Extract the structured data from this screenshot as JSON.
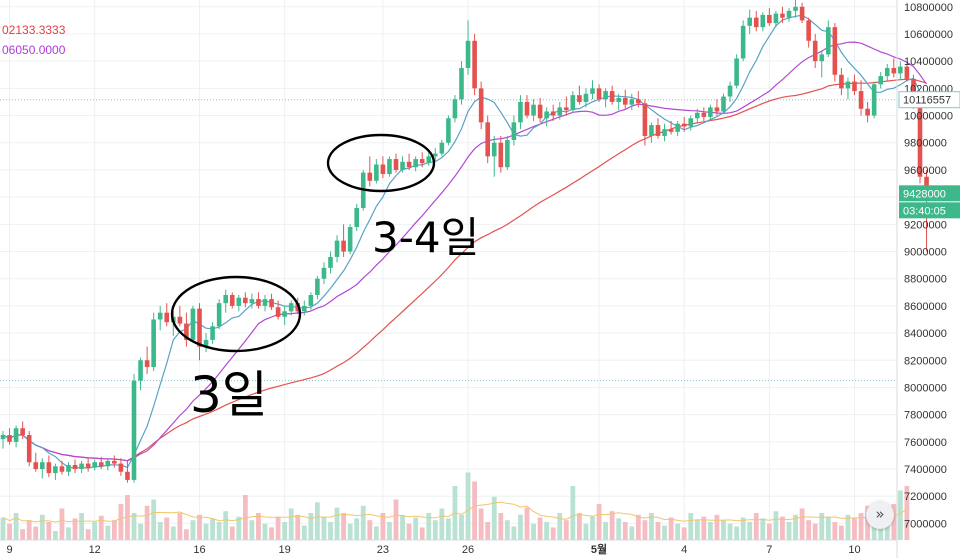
{
  "chart_data": {
    "type": "candlestick",
    "ma_values": [
      {
        "value": "02133.3333",
        "color": "#e0404a"
      },
      {
        "value": "06050.0000",
        "color": "#b03ad8"
      }
    ],
    "y_ticks": [
      "10800000",
      "10600000",
      "10400000",
      "10200000",
      "10000000",
      "9800000",
      "9600000",
      "9400000",
      "9200000",
      "9000000",
      "8800000",
      "8600000",
      "8400000",
      "8200000",
      "8000000",
      "7800000",
      "7600000",
      "7400000",
      "7200000",
      "7000000"
    ],
    "ylim": [
      6900000,
      10850000
    ],
    "x_ticks": [
      "9",
      "12",
      "16",
      "19",
      "23",
      "26",
      "5월",
      "4",
      "7",
      "10"
    ],
    "price_labels": [
      {
        "text": "10116557",
        "value": 10116557,
        "style": "line"
      },
      {
        "text": "9428000",
        "value": 9428000,
        "style": "current"
      },
      {
        "text": "03:40:05",
        "value": 9428000,
        "style": "timer"
      }
    ],
    "reference_lines": [
      10116557,
      8050000
    ],
    "annotations": [
      "3일",
      "3-4일"
    ],
    "candles": [
      [
        7620000,
        7680000,
        7550000,
        7650000
      ],
      [
        7650000,
        7700000,
        7580000,
        7600000
      ],
      [
        7600000,
        7720000,
        7560000,
        7700000
      ],
      [
        7700000,
        7750000,
        7620000,
        7650000
      ],
      [
        7650000,
        7680000,
        7420000,
        7450000
      ],
      [
        7450000,
        7520000,
        7380000,
        7400000
      ],
      [
        7400000,
        7480000,
        7330000,
        7450000
      ],
      [
        7450000,
        7500000,
        7340000,
        7370000
      ],
      [
        7370000,
        7440000,
        7320000,
        7420000
      ],
      [
        7420000,
        7460000,
        7360000,
        7380000
      ],
      [
        7380000,
        7450000,
        7350000,
        7430000
      ],
      [
        7430000,
        7470000,
        7370000,
        7400000
      ],
      [
        7400000,
        7460000,
        7370000,
        7440000
      ],
      [
        7440000,
        7480000,
        7380000,
        7410000
      ],
      [
        7410000,
        7470000,
        7390000,
        7450000
      ],
      [
        7450000,
        7490000,
        7400000,
        7420000
      ],
      [
        7420000,
        7480000,
        7390000,
        7460000
      ],
      [
        7460000,
        7500000,
        7410000,
        7440000
      ],
      [
        7440000,
        7480000,
        7350000,
        7380000
      ],
      [
        7380000,
        7460000,
        7300000,
        7320000
      ],
      [
        7320000,
        8100000,
        7300000,
        8050000
      ],
      [
        8050000,
        8220000,
        7980000,
        8200000
      ],
      [
        8200000,
        8300000,
        8100000,
        8150000
      ],
      [
        8150000,
        8550000,
        8120000,
        8500000
      ],
      [
        8500000,
        8600000,
        8420000,
        8550000
      ],
      [
        8550000,
        8620000,
        8450000,
        8480000
      ],
      [
        8480000,
        8560000,
        8380000,
        8520000
      ],
      [
        8520000,
        8600000,
        8450000,
        8470000
      ],
      [
        8470000,
        8550000,
        8300000,
        8350000
      ],
      [
        8350000,
        8600000,
        8330000,
        8580000
      ],
      [
        8580000,
        8620000,
        8200000,
        8300000
      ],
      [
        8300000,
        8400000,
        8260000,
        8350000
      ],
      [
        8350000,
        8480000,
        8320000,
        8450000
      ],
      [
        8450000,
        8650000,
        8430000,
        8620000
      ],
      [
        8620000,
        8720000,
        8550000,
        8680000
      ],
      [
        8680000,
        8700000,
        8580000,
        8600000
      ],
      [
        8600000,
        8680000,
        8560000,
        8660000
      ],
      [
        8660000,
        8700000,
        8590000,
        8620000
      ],
      [
        8620000,
        8690000,
        8580000,
        8650000
      ],
      [
        8650000,
        8700000,
        8580000,
        8600000
      ],
      [
        8600000,
        8680000,
        8560000,
        8650000
      ],
      [
        8650000,
        8690000,
        8570000,
        8590000
      ],
      [
        8590000,
        8640000,
        8500000,
        8520000
      ],
      [
        8520000,
        8600000,
        8460000,
        8560000
      ],
      [
        8560000,
        8640000,
        8530000,
        8620000
      ],
      [
        8620000,
        8660000,
        8540000,
        8560000
      ],
      [
        8560000,
        8640000,
        8530000,
        8600000
      ],
      [
        8600000,
        8700000,
        8570000,
        8680000
      ],
      [
        8680000,
        8820000,
        8650000,
        8800000
      ],
      [
        8800000,
        8920000,
        8760000,
        8880000
      ],
      [
        8880000,
        9000000,
        8840000,
        8960000
      ],
      [
        8960000,
        9120000,
        8920000,
        9080000
      ],
      [
        9080000,
        9200000,
        8960000,
        9000000
      ],
      [
        9000000,
        9200000,
        8980000,
        9180000
      ],
      [
        9180000,
        9350000,
        9150000,
        9320000
      ],
      [
        9320000,
        9600000,
        9300000,
        9580000
      ],
      [
        9580000,
        9700000,
        9480000,
        9520000
      ],
      [
        9520000,
        9680000,
        9500000,
        9640000
      ],
      [
        9640000,
        9700000,
        9540000,
        9570000
      ],
      [
        9570000,
        9700000,
        9550000,
        9680000
      ],
      [
        9680000,
        9720000,
        9580000,
        9600000
      ],
      [
        9600000,
        9700000,
        9580000,
        9660000
      ],
      [
        9660000,
        9720000,
        9600000,
        9620000
      ],
      [
        9620000,
        9700000,
        9590000,
        9680000
      ],
      [
        9680000,
        9730000,
        9620000,
        9650000
      ],
      [
        9650000,
        9730000,
        9630000,
        9700000
      ],
      [
        9700000,
        9760000,
        9660000,
        9720000
      ],
      [
        9720000,
        9820000,
        9700000,
        9800000
      ],
      [
        9800000,
        10000000,
        9780000,
        9980000
      ],
      [
        9980000,
        10150000,
        9950000,
        10120000
      ],
      [
        10120000,
        10400000,
        10080000,
        10350000
      ],
      [
        10350000,
        10700000,
        10300000,
        10550000
      ],
      [
        10550000,
        10600000,
        10150000,
        10200000
      ],
      [
        10200000,
        10250000,
        9900000,
        9950000
      ],
      [
        9950000,
        10000000,
        9650000,
        9700000
      ],
      [
        9700000,
        9850000,
        9550000,
        9800000
      ],
      [
        9800000,
        9850000,
        9580000,
        9620000
      ],
      [
        9620000,
        9850000,
        9600000,
        9820000
      ],
      [
        9820000,
        10000000,
        9780000,
        9950000
      ],
      [
        9950000,
        10150000,
        9900000,
        10100000
      ],
      [
        10100000,
        10150000,
        9980000,
        10000000
      ],
      [
        10000000,
        10120000,
        9960000,
        10080000
      ],
      [
        10080000,
        10130000,
        9950000,
        9980000
      ],
      [
        9980000,
        10060000,
        9920000,
        10030000
      ],
      [
        10030000,
        10080000,
        9960000,
        10000000
      ],
      [
        10000000,
        10100000,
        9970000,
        10060000
      ],
      [
        10060000,
        10140000,
        10000000,
        10040000
      ],
      [
        10040000,
        10180000,
        10020000,
        10150000
      ],
      [
        10150000,
        10220000,
        10080000,
        10100000
      ],
      [
        10100000,
        10200000,
        10060000,
        10160000
      ],
      [
        10160000,
        10260000,
        10120000,
        10200000
      ],
      [
        10200000,
        10230000,
        10100000,
        10120000
      ],
      [
        10120000,
        10200000,
        10060000,
        10180000
      ],
      [
        10180000,
        10220000,
        10080000,
        10100000
      ],
      [
        10100000,
        10160000,
        10040000,
        10130000
      ],
      [
        10130000,
        10190000,
        10050000,
        10080000
      ],
      [
        10080000,
        10160000,
        10040000,
        10120000
      ],
      [
        10120000,
        10180000,
        10060000,
        10090000
      ],
      [
        10090000,
        10120000,
        9780000,
        9850000
      ],
      [
        9850000,
        9950000,
        9800000,
        9930000
      ],
      [
        9930000,
        9980000,
        9830000,
        9850000
      ],
      [
        9850000,
        9940000,
        9810000,
        9900000
      ],
      [
        9900000,
        9960000,
        9860000,
        9880000
      ],
      [
        9880000,
        9960000,
        9850000,
        9940000
      ],
      [
        9940000,
        9990000,
        9880000,
        9920000
      ],
      [
        9920000,
        10000000,
        9890000,
        9980000
      ],
      [
        9980000,
        10050000,
        9940000,
        10020000
      ],
      [
        10020000,
        10060000,
        9960000,
        9990000
      ],
      [
        9990000,
        10080000,
        9970000,
        10060000
      ],
      [
        10060000,
        10120000,
        10000000,
        10030000
      ],
      [
        10030000,
        10160000,
        10010000,
        10140000
      ],
      [
        10140000,
        10250000,
        10100000,
        10220000
      ],
      [
        10220000,
        10450000,
        10200000,
        10420000
      ],
      [
        10420000,
        10700000,
        10400000,
        10660000
      ],
      [
        10660000,
        10780000,
        10600000,
        10720000
      ],
      [
        10720000,
        10770000,
        10620000,
        10650000
      ],
      [
        10650000,
        10760000,
        10620000,
        10740000
      ],
      [
        10740000,
        10790000,
        10660000,
        10680000
      ],
      [
        10680000,
        10770000,
        10650000,
        10750000
      ],
      [
        10750000,
        10800000,
        10680000,
        10720000
      ],
      [
        10720000,
        10790000,
        10690000,
        10770000
      ],
      [
        10770000,
        10850000,
        10720000,
        10800000
      ],
      [
        10800000,
        10830000,
        10680000,
        10700000
      ],
      [
        10700000,
        10720000,
        10500000,
        10550000
      ],
      [
        10550000,
        10600000,
        10350000,
        10400000
      ],
      [
        10400000,
        10480000,
        10280000,
        10450000
      ],
      [
        10450000,
        10700000,
        10430000,
        10650000
      ],
      [
        10650000,
        10680000,
        10250000,
        10300000
      ],
      [
        10300000,
        10350000,
        10150000,
        10200000
      ],
      [
        10200000,
        10280000,
        10120000,
        10250000
      ],
      [
        10250000,
        10300000,
        10150000,
        10180000
      ],
      [
        10180000,
        10260000,
        10000000,
        10050000
      ],
      [
        10050000,
        10100000,
        9950000,
        10000000
      ],
      [
        10000000,
        10250000,
        9980000,
        10230000
      ],
      [
        10230000,
        10320000,
        10200000,
        10290000
      ],
      [
        10290000,
        10380000,
        10250000,
        10350000
      ],
      [
        10350000,
        10420000,
        10280000,
        10310000
      ],
      [
        10310000,
        10400000,
        10260000,
        10360000
      ],
      [
        10360000,
        10380000,
        10250000,
        10270000
      ],
      [
        10270000,
        10300000,
        10050000,
        10100000
      ],
      [
        10100000,
        10150000,
        9500000,
        9550000
      ],
      [
        9550000,
        9600000,
        9000000,
        9428000
      ]
    ],
    "volume": [
      0.25,
      0.18,
      0.3,
      0.12,
      0.22,
      0.15,
      0.28,
      0.2,
      0.1,
      0.35,
      0.14,
      0.24,
      0.3,
      0.12,
      0.2,
      0.27,
      0.16,
      0.22,
      0.4,
      0.5,
      0.3,
      0.18,
      0.38,
      0.45,
      0.2,
      0.25,
      0.15,
      0.3,
      0.12,
      0.22,
      0.28,
      0.18,
      0.24,
      0.2,
      0.32,
      0.15,
      0.26,
      0.5,
      0.22,
      0.3,
      0.18,
      0.14,
      0.26,
      0.2,
      0.35,
      0.28,
      0.16,
      0.3,
      0.42,
      0.25,
      0.2,
      0.36,
      0.3,
      0.18,
      0.24,
      0.38,
      0.22,
      0.15,
      0.3,
      0.2,
      0.45,
      0.28,
      0.18,
      0.25,
      0.14,
      0.3,
      0.22,
      0.35,
      0.24,
      0.6,
      0.28,
      0.75,
      0.65,
      0.35,
      0.2,
      0.48,
      0.3,
      0.22,
      0.15,
      0.28,
      0.36,
      0.18,
      0.25,
      0.2,
      0.14,
      0.3,
      0.22,
      0.6,
      0.3,
      0.18,
      0.26,
      0.4,
      0.2,
      0.32,
      0.24,
      0.2,
      0.15,
      0.28,
      0.22,
      0.3,
      0.2,
      0.16,
      0.25,
      0.18,
      0.14,
      0.3,
      0.22,
      0.26,
      0.2,
      0.28,
      0.22,
      0.18,
      0.15,
      0.25,
      0.2,
      0.3,
      0.24,
      0.18,
      0.32,
      0.26,
      0.2,
      0.28,
      0.35,
      0.22,
      0.18,
      0.3,
      0.25,
      0.2,
      0.16,
      0.28,
      0.24,
      0.3,
      0.38,
      0.22,
      0.18,
      0.26,
      0.4,
      0.55,
      0.6
    ]
  }
}
